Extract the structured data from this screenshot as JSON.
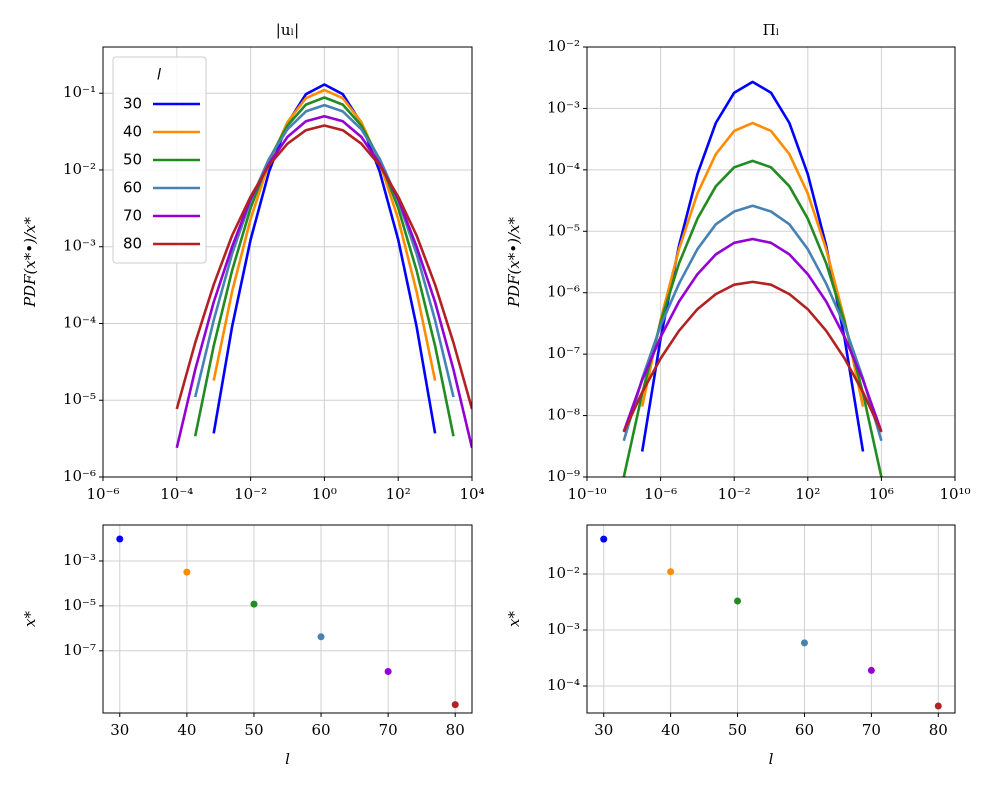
{
  "chart_data": [
    {
      "type": "line",
      "title": "|uₗ|",
      "ylabel": "PDF(x*•)/x*",
      "xlog": true,
      "ylog": true,
      "grid": true,
      "legend": "upper left",
      "legend_title": "l",
      "xlim": [
        1e-06,
        10000.0
      ],
      "ylim": [
        1e-06,
        0.4
      ],
      "xticks": [
        {
          "value": 1e-06,
          "label": "10⁻⁶"
        },
        {
          "value": 0.0001,
          "label": "10⁻⁴"
        },
        {
          "value": 0.01,
          "label": "10⁻²"
        },
        {
          "value": 1,
          "label": "10⁰"
        },
        {
          "value": 100,
          "label": "10²"
        },
        {
          "value": 10000,
          "label": "10⁴"
        }
      ],
      "yticks": [
        {
          "value": 1e-06,
          "label": "10⁻⁶"
        },
        {
          "value": 1e-05,
          "label": "10⁻⁵"
        },
        {
          "value": 0.0001,
          "label": "10⁻⁴"
        },
        {
          "value": 0.001,
          "label": "10⁻³"
        },
        {
          "value": 0.01,
          "label": "10⁻²"
        },
        {
          "value": 0.1,
          "label": "10⁻¹"
        }
      ],
      "x": [
        3.16e-05,
        0.0001,
        0.000316,
        0.001,
        0.00316,
        0.01,
        0.0316,
        0.1,
        0.316,
        1,
        3.16,
        10,
        31.6,
        100,
        316,
        1000,
        3160,
        10000
      ],
      "series": [
        {
          "name": "30",
          "color": "#0000ff",
          "values": [
            null,
            null,
            null,
            3.7e-06,
            9.1e-05,
            0.00124,
            0.0095,
            0.0406,
            0.097,
            0.13,
            0.097,
            0.0406,
            0.0095,
            0.00124,
            9.1e-05,
            3.7e-06,
            null,
            null
          ]
        },
        {
          "name": "40",
          "color": "#ff8c00",
          "values": [
            null,
            null,
            null,
            1.8e-05,
            0.00026,
            0.0023,
            0.0124,
            0.042,
            0.086,
            0.11,
            0.086,
            0.042,
            0.0124,
            0.0023,
            0.00026,
            1.8e-05,
            null,
            null
          ]
        },
        {
          "name": "50",
          "color": "#228b22",
          "values": [
            null,
            null,
            3.4e-06,
            5.1e-05,
            0.00049,
            0.0032,
            0.0136,
            0.038,
            0.071,
            0.088,
            0.071,
            0.038,
            0.0136,
            0.0032,
            0.00049,
            5.1e-05,
            3.4e-06,
            null
          ]
        },
        {
          "name": "60",
          "color": "#4682b4",
          "values": [
            null,
            null,
            1.1e-05,
            0.00011,
            0.00081,
            0.004,
            0.014,
            0.034,
            0.058,
            0.07,
            0.058,
            0.034,
            0.014,
            0.004,
            0.00081,
            0.00011,
            1.1e-05,
            null
          ]
        },
        {
          "name": "70",
          "color": "#9400d3",
          "values": [
            null,
            2.4e-06,
            2.5e-05,
            0.00019,
            0.001,
            0.0042,
            0.012,
            0.027,
            0.043,
            0.05,
            0.043,
            0.027,
            0.012,
            0.0042,
            0.001,
            0.00019,
            2.5e-05,
            2.4e-06
          ]
        },
        {
          "name": "80",
          "color": "#b22222",
          "values": [
            null,
            7.7e-06,
            5.6e-05,
            0.00032,
            0.0014,
            0.0045,
            0.0115,
            0.022,
            0.033,
            0.038,
            0.033,
            0.022,
            0.0115,
            0.0045,
            0.0014,
            0.00032,
            5.6e-05,
            7.7e-06
          ]
        }
      ]
    },
    {
      "type": "line",
      "title": "Πₗ",
      "ylabel": "PDF(x*•)/x*",
      "xlog": true,
      "ylog": true,
      "grid": true,
      "xlim": [
        1e-10,
        10000000000.0
      ],
      "ylim": [
        1e-09,
        0.01
      ],
      "xticks": [
        {
          "value": 1e-10,
          "label": "10⁻¹⁰"
        },
        {
          "value": 1e-06,
          "label": "10⁻⁶"
        },
        {
          "value": 0.01,
          "label": "10⁻²"
        },
        {
          "value": 100,
          "label": "10²"
        },
        {
          "value": 1000000.0,
          "label": "10⁶"
        },
        {
          "value": 10000000000.0,
          "label": "10¹⁰"
        }
      ],
      "yticks": [
        {
          "value": 1e-09,
          "label": "10⁻⁹"
        },
        {
          "value": 1e-08,
          "label": "10⁻⁸"
        },
        {
          "value": 1e-07,
          "label": "10⁻⁷"
        },
        {
          "value": 1e-06,
          "label": "10⁻⁶"
        },
        {
          "value": 1e-05,
          "label": "10⁻⁵"
        },
        {
          "value": 0.0001,
          "label": "10⁻⁴"
        },
        {
          "value": 0.001,
          "label": "10⁻³"
        },
        {
          "value": 0.01,
          "label": "10⁻²"
        }
      ],
      "x": [
        1e-10,
        1e-09,
        1e-08,
        1e-07,
        1e-06,
        1e-05,
        0.0001,
        0.001,
        0.01,
        0.1,
        1,
        10,
        100,
        1000,
        10000.0,
        100000.0,
        1000000.0,
        10000000.0,
        100000000.0
      ],
      "series": [
        {
          "color": "#0000ff",
          "values": [
            null,
            null,
            null,
            2.6e-09,
            1.8e-07,
            5.8e-06,
            8.5e-05,
            0.00058,
            0.0018,
            0.0027,
            0.0018,
            0.00058,
            8.5e-05,
            5.8e-06,
            1.8e-07,
            2.6e-09,
            null,
            null,
            null
          ]
        },
        {
          "color": "#ff8c00",
          "values": [
            null,
            null,
            null,
            1.4e-08,
            3.6e-07,
            5.1e-06,
            4.1e-05,
            0.00018,
            0.00043,
            0.00058,
            0.00043,
            0.00018,
            4.1e-05,
            5.1e-06,
            3.6e-07,
            1.4e-08,
            null,
            null,
            null
          ]
        },
        {
          "color": "#228b22",
          "values": [
            null,
            null,
            1e-09,
            2.3e-08,
            3.3e-07,
            3e-06,
            1.6e-05,
            5.4e-05,
            0.00011,
            0.00014,
            0.00011,
            5.4e-05,
            1.6e-05,
            3e-06,
            3.3e-07,
            2.3e-08,
            1e-09,
            null,
            null
          ]
        },
        {
          "color": "#4682b4",
          "values": [
            null,
            null,
            3.9e-09,
            4e-08,
            2.9e-07,
            1.4e-06,
            5.1e-06,
            1.3e-05,
            2.1e-05,
            2.6e-05,
            2.1e-05,
            1.3e-05,
            5.1e-06,
            1.4e-06,
            2.9e-07,
            4e-08,
            3.9e-09,
            null,
            null
          ]
        },
        {
          "color": "#9400d3",
          "values": [
            null,
            null,
            5.5e-09,
            3.8e-08,
            1.9e-07,
            7.2e-07,
            2e-06,
            4.2e-06,
            6.5e-06,
            7.5e-06,
            6.5e-06,
            4.2e-06,
            2e-06,
            7.2e-07,
            1.9e-07,
            3.8e-08,
            5.5e-09,
            null,
            null
          ]
        },
        {
          "color": "#b22222",
          "values": [
            null,
            null,
            5.4e-09,
            2.4e-08,
            8.5e-08,
            2.4e-07,
            5.4e-07,
            9.5e-07,
            1.35e-06,
            1.5e-06,
            1.35e-06,
            9.5e-07,
            5.4e-07,
            2.4e-07,
            8.5e-08,
            2.4e-08,
            5.4e-09,
            null,
            null
          ]
        }
      ]
    },
    {
      "type": "scatter",
      "xlabel": "l",
      "ylabel": "x*",
      "xlog": false,
      "ylog": true,
      "grid": true,
      "xlim": [
        27.5,
        82.5
      ],
      "ylim": [
        1.7e-10,
        0.04
      ],
      "xticks": [
        30,
        40,
        50,
        60,
        70,
        80
      ],
      "yticks": [
        {
          "value": 1e-07,
          "label": "10⁻⁷"
        },
        {
          "value": 1e-05,
          "label": "10⁻⁵"
        },
        {
          "value": 0.001,
          "label": "10⁻³"
        }
      ],
      "x": [
        30,
        40,
        50,
        60,
        70,
        80
      ],
      "values": [
        0.0095,
        0.00032,
        1.2e-05,
        4.2e-07,
        1.2e-08,
        4e-10
      ],
      "colors": [
        "#0000ff",
        "#ff8c00",
        "#228b22",
        "#4682b4",
        "#9400d3",
        "#b22222"
      ]
    },
    {
      "type": "scatter",
      "xlabel": "l",
      "ylabel": "x*",
      "xlog": false,
      "ylog": true,
      "grid": true,
      "xlim": [
        27.5,
        82.5
      ],
      "ylim": [
        3.3e-05,
        0.075
      ],
      "xticks": [
        30,
        40,
        50,
        60,
        70,
        80
      ],
      "yticks": [
        {
          "value": 0.0001,
          "label": "10⁻⁴"
        },
        {
          "value": 0.001,
          "label": "10⁻³"
        },
        {
          "value": 0.01,
          "label": "10⁻²"
        }
      ],
      "x": [
        30,
        40,
        50,
        60,
        70,
        80
      ],
      "values": [
        0.042,
        0.011,
        0.0033,
        0.00059,
        0.00019,
        4.4e-05
      ],
      "colors": [
        "#0000ff",
        "#ff8c00",
        "#228b22",
        "#4682b4",
        "#9400d3",
        "#b22222"
      ]
    }
  ]
}
